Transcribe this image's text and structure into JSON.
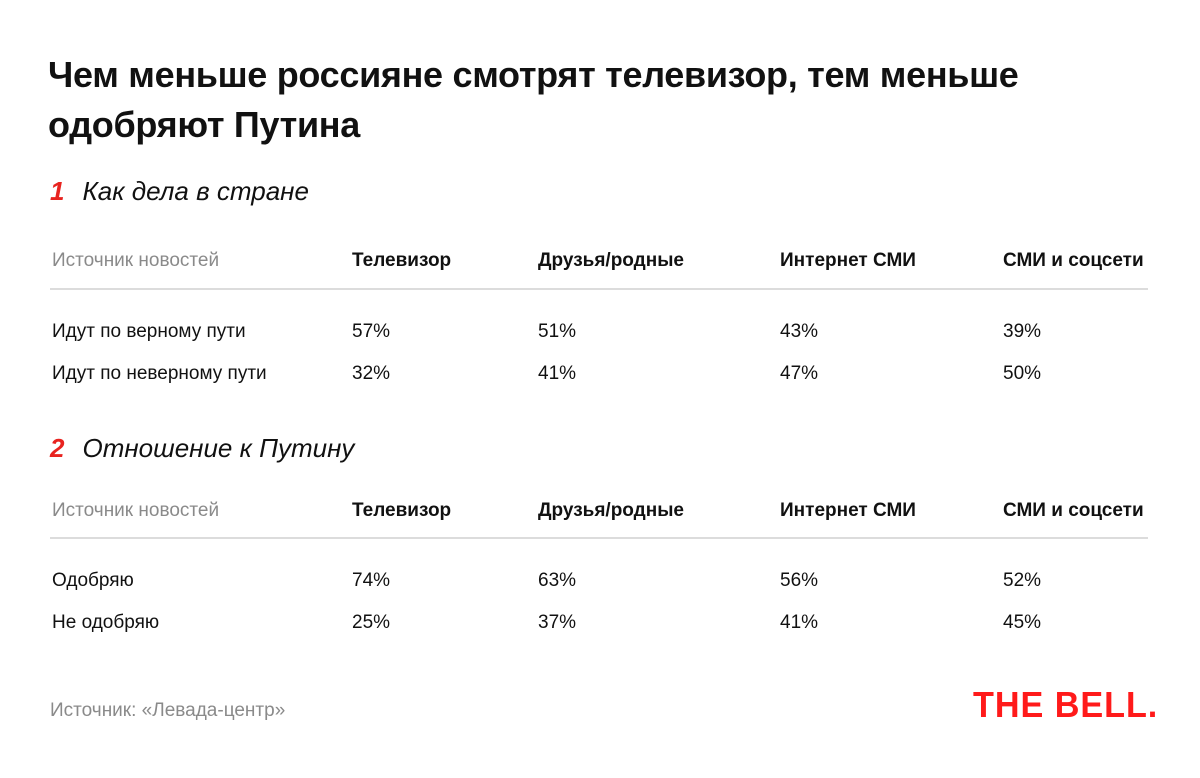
{
  "title": "Чем меньше россияне смотрят телевизор, тем меньше одобряют Путина",
  "colors": {
    "accent": "#e8231f",
    "logo": "#ff1a1a",
    "muted": "#8a8a8a"
  },
  "chart_data": [
    {
      "type": "table",
      "number": "1",
      "title": "Как дела в стране",
      "columns": [
        "Источник новостей",
        "Телевизор",
        "Друзья/родные",
        "Интернет СМИ",
        "СМИ и соцсети"
      ],
      "rows": [
        {
          "label": "Идут по верному пути",
          "values": [
            "57%",
            "51%",
            "43%",
            "39%"
          ]
        },
        {
          "label": "Идут по неверному пути",
          "values": [
            "32%",
            "41%",
            "47%",
            "50%"
          ]
        }
      ]
    },
    {
      "type": "table",
      "number": "2",
      "title": "Отношение к Путину",
      "columns": [
        "Источник новостей",
        "Телевизор",
        "Друзья/родные",
        "Интернет СМИ",
        "СМИ и соцсети"
      ],
      "rows": [
        {
          "label": "Одобряю",
          "values": [
            "74%",
            "63%",
            "56%",
            "52%"
          ]
        },
        {
          "label": "Не одобряю",
          "values": [
            "25%",
            "37%",
            "41%",
            "45%"
          ]
        }
      ]
    }
  ],
  "source": "Источник: «Левада-центр»",
  "logo": "THE BELL."
}
